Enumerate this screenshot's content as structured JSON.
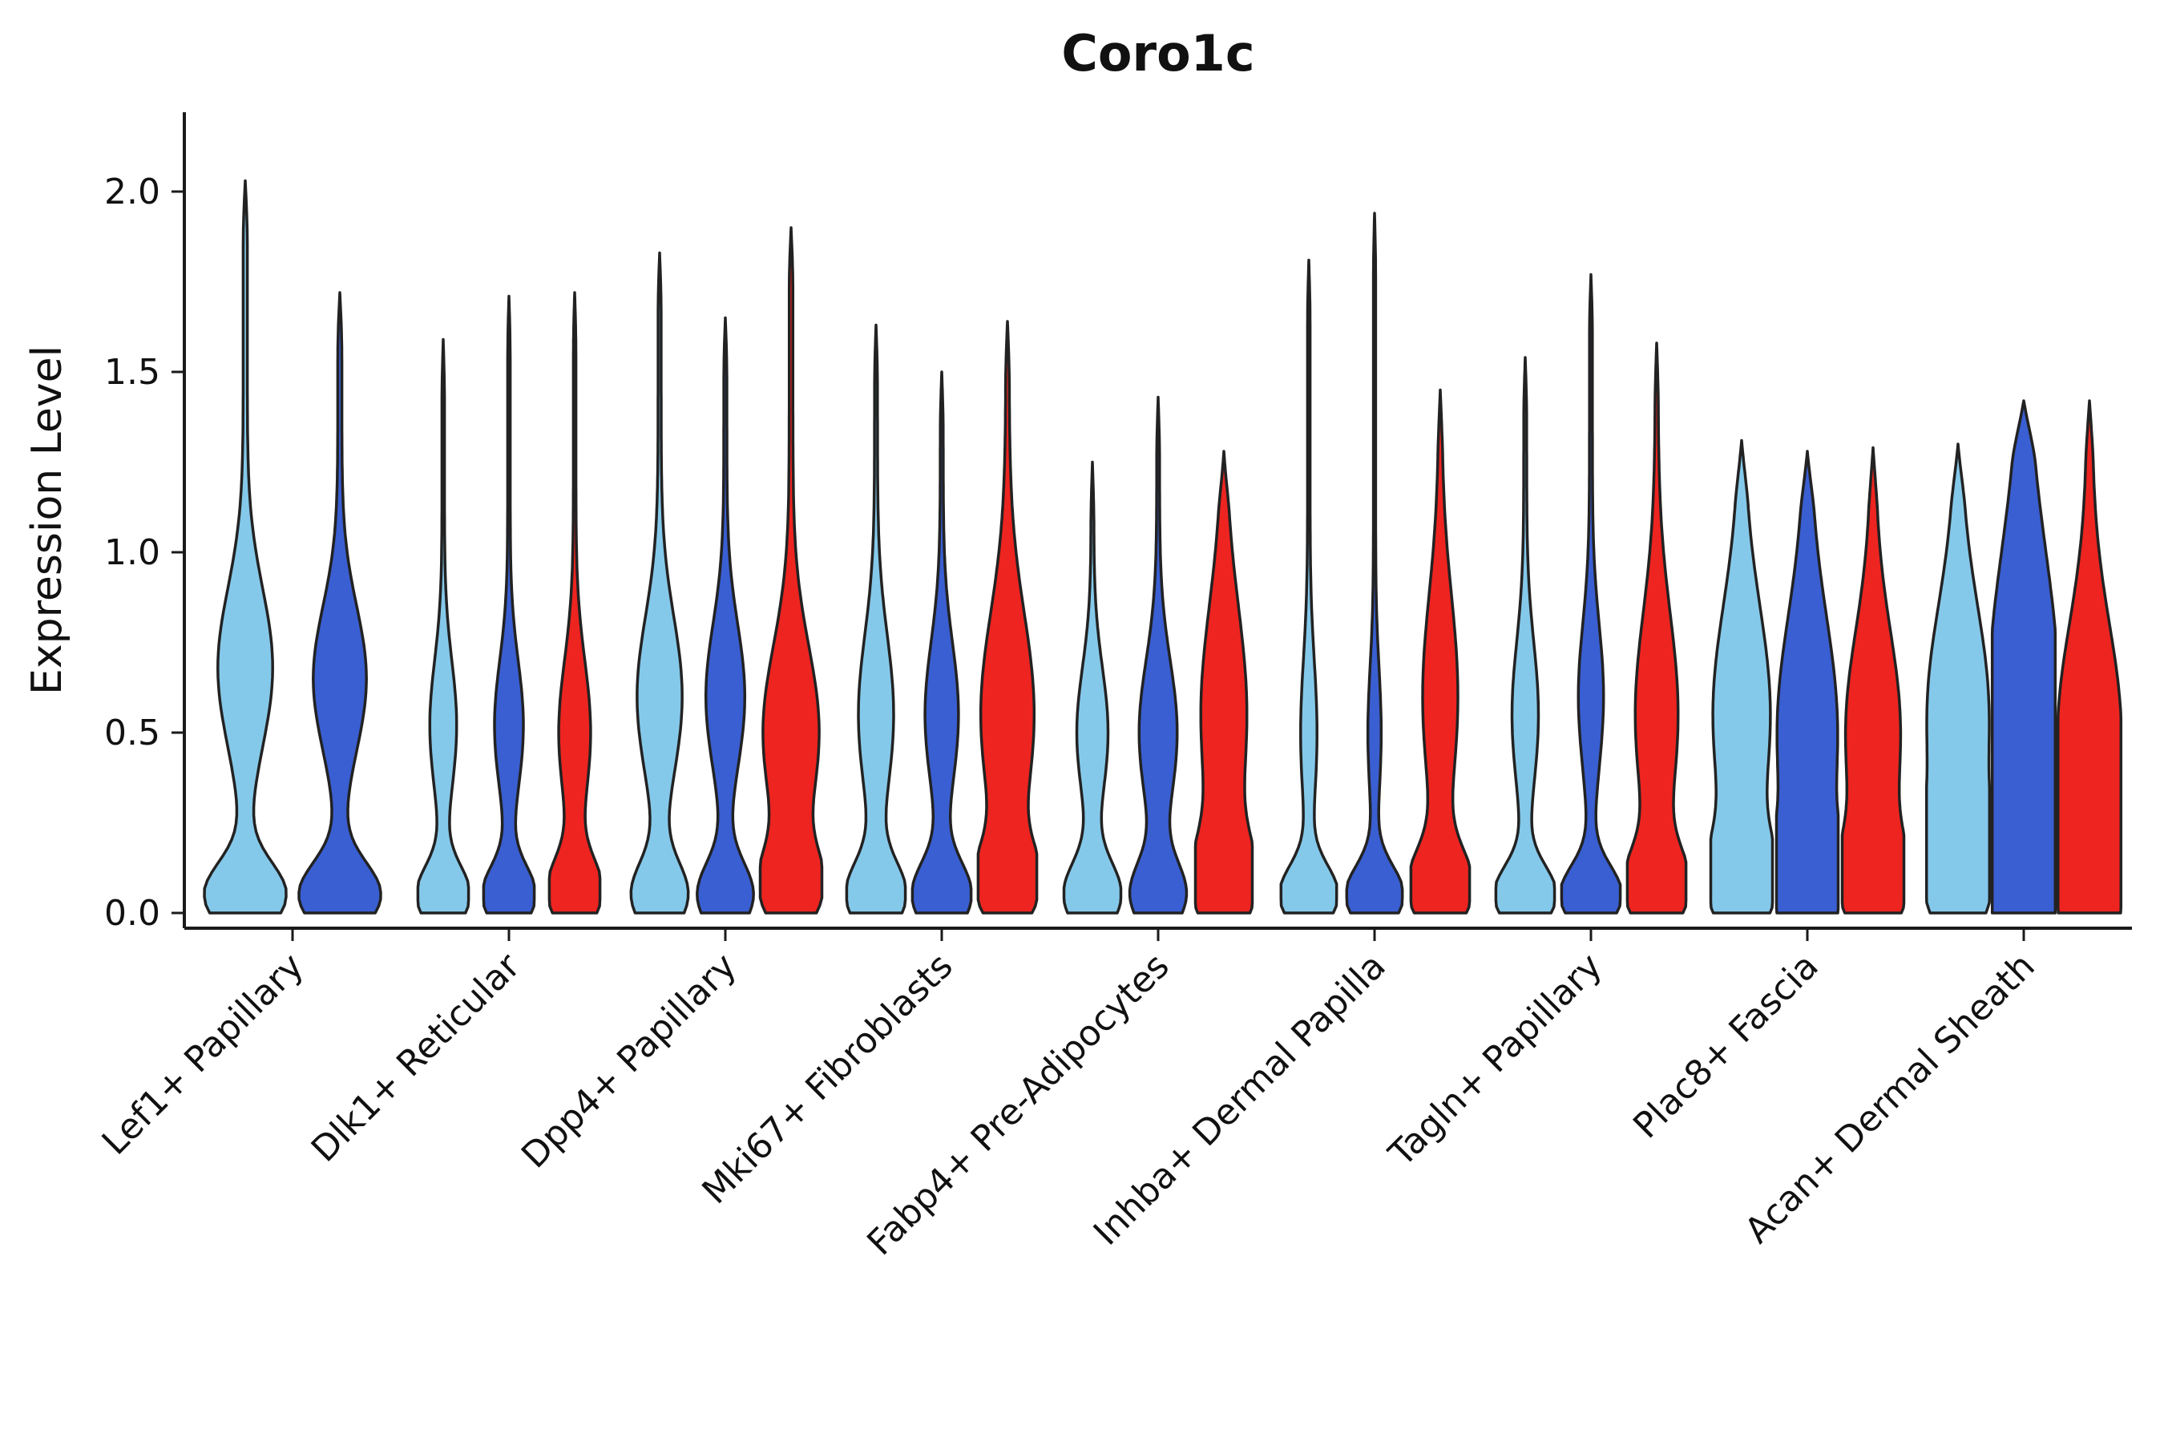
{
  "chart_data": {
    "type": "violin",
    "title": "Coro1c",
    "ylabel": "Expression Level",
    "ylim": [
      0,
      2.1
    ],
    "yticks": [
      0.0,
      0.5,
      1.0,
      1.5,
      2.0
    ],
    "grid": false,
    "legend_position": "none",
    "series_colors": [
      "#85C9EA",
      "#3A5FD2",
      "#EE2420"
    ],
    "stroke_color": "#222222",
    "categories": [
      {
        "label": "Lef1+ Papillary",
        "violins": [
          {
            "series": 0,
            "max": 2.03,
            "scale": 0.92,
            "tail": 0.05,
            "bumps": [
              [
                0.05,
                0.09,
                0.95
              ],
              [
                0.68,
                0.22,
                0.62
              ]
            ]
          },
          {
            "series": 1,
            "max": 1.72,
            "scale": 0.92,
            "tail": 0.05,
            "bumps": [
              [
                0.05,
                0.09,
                0.95
              ],
              [
                0.65,
                0.2,
                0.6
              ]
            ]
          }
        ]
      },
      {
        "label": "Dlk1+ Reticular",
        "violins": [
          {
            "series": 0,
            "max": 1.59,
            "scale": 0.82,
            "tail": 0.05,
            "bumps": [
              [
                0.05,
                0.08,
                1.0
              ],
              [
                0.52,
                0.18,
                0.48
              ]
            ]
          },
          {
            "series": 1,
            "max": 1.71,
            "scale": 0.82,
            "tail": 0.05,
            "bumps": [
              [
                0.05,
                0.08,
                1.0
              ],
              [
                0.52,
                0.18,
                0.52
              ]
            ]
          },
          {
            "series": 2,
            "max": 1.72,
            "scale": 0.82,
            "tail": 0.05,
            "bumps": [
              [
                0.06,
                0.09,
                1.0
              ],
              [
                0.5,
                0.2,
                0.58
              ]
            ]
          }
        ]
      },
      {
        "label": "Dpp4+ Papillary",
        "violins": [
          {
            "series": 0,
            "max": 1.83,
            "scale": 1.0,
            "tail": 0.05,
            "bumps": [
              [
                0.05,
                0.09,
                0.85
              ],
              [
                0.6,
                0.22,
                0.68
              ]
            ]
          },
          {
            "series": 1,
            "max": 1.65,
            "scale": 1.0,
            "tail": 0.05,
            "bumps": [
              [
                0.05,
                0.09,
                0.85
              ],
              [
                0.6,
                0.2,
                0.58
              ]
            ]
          },
          {
            "series": 2,
            "max": 1.9,
            "scale": 1.0,
            "tail": 0.06,
            "bumps": [
              [
                0.07,
                0.1,
                0.85
              ],
              [
                0.5,
                0.24,
                0.85
              ]
            ]
          }
        ]
      },
      {
        "label": "Mki67+ Fibroblasts",
        "violins": [
          {
            "series": 0,
            "max": 1.63,
            "scale": 0.95,
            "tail": 0.05,
            "bumps": [
              [
                0.05,
                0.09,
                0.95
              ],
              [
                0.55,
                0.22,
                0.55
              ]
            ]
          },
          {
            "series": 1,
            "max": 1.5,
            "scale": 0.95,
            "tail": 0.05,
            "bumps": [
              [
                0.05,
                0.09,
                0.95
              ],
              [
                0.55,
                0.2,
                0.52
              ]
            ]
          },
          {
            "series": 2,
            "max": 1.64,
            "scale": 0.95,
            "tail": 0.06,
            "bumps": [
              [
                0.08,
                0.1,
                0.9
              ],
              [
                0.55,
                0.28,
                0.85
              ]
            ]
          }
        ]
      },
      {
        "label": "Fabp4+ Pre-Adipocytes",
        "violins": [
          {
            "series": 0,
            "max": 1.25,
            "scale": 0.92,
            "tail": 0.05,
            "bumps": [
              [
                0.05,
                0.09,
                0.95
              ],
              [
                0.5,
                0.18,
                0.5
              ]
            ]
          },
          {
            "series": 1,
            "max": 1.43,
            "scale": 0.92,
            "tail": 0.05,
            "bumps": [
              [
                0.05,
                0.09,
                0.9
              ],
              [
                0.5,
                0.2,
                0.62
              ]
            ]
          },
          {
            "series": 2,
            "max": 1.28,
            "scale": 0.92,
            "tail": 0.06,
            "bumps": [
              [
                0.08,
                0.12,
                0.9
              ],
              [
                0.55,
                0.3,
                0.75
              ]
            ]
          }
        ]
      },
      {
        "label": "Inhba+ Dermal Papilla",
        "violins": [
          {
            "series": 0,
            "max": 1.81,
            "scale": 0.9,
            "tail": 0.045,
            "bumps": [
              [
                0.05,
                0.08,
                1.0
              ],
              [
                0.5,
                0.2,
                0.25
              ]
            ]
          },
          {
            "series": 1,
            "max": 1.94,
            "scale": 0.9,
            "tail": 0.04,
            "bumps": [
              [
                0.05,
                0.08,
                1.0
              ],
              [
                0.5,
                0.18,
                0.2
              ]
            ]
          },
          {
            "series": 2,
            "max": 1.45,
            "scale": 0.95,
            "tail": 0.05,
            "bumps": [
              [
                0.07,
                0.1,
                1.0
              ],
              [
                0.6,
                0.28,
                0.55
              ]
            ]
          }
        ]
      },
      {
        "label": "Tagln+ Papillary",
        "violins": [
          {
            "series": 0,
            "max": 1.54,
            "scale": 0.95,
            "tail": 0.05,
            "bumps": [
              [
                0.05,
                0.08,
                1.0
              ],
              [
                0.55,
                0.2,
                0.4
              ]
            ]
          },
          {
            "series": 1,
            "max": 1.77,
            "scale": 0.95,
            "tail": 0.05,
            "bumps": [
              [
                0.05,
                0.08,
                1.0
              ],
              [
                0.6,
                0.2,
                0.38
              ]
            ]
          },
          {
            "series": 2,
            "max": 1.58,
            "scale": 0.95,
            "tail": 0.05,
            "bumps": [
              [
                0.07,
                0.1,
                0.95
              ],
              [
                0.55,
                0.28,
                0.68
              ]
            ]
          }
        ]
      },
      {
        "label": "Plac8+ Fascia",
        "violins": [
          {
            "series": 0,
            "max": 1.31,
            "scale": 1.0,
            "tail": 0.08,
            "bumps": [
              [
                0.08,
                0.12,
                0.85
              ],
              [
                0.55,
                0.3,
                0.85
              ]
            ]
          },
          {
            "series": 1,
            "max": 1.28,
            "scale": 1.0,
            "tail": 0.08,
            "bumps": [
              [
                0.08,
                0.12,
                0.8
              ],
              [
                0.5,
                0.32,
                0.9
              ]
            ]
          },
          {
            "series": 2,
            "max": 1.29,
            "scale": 1.0,
            "tail": 0.07,
            "bumps": [
              [
                0.08,
                0.12,
                0.85
              ],
              [
                0.5,
                0.28,
                0.82
              ]
            ]
          }
        ]
      },
      {
        "label": "Acan+ Dermal Sheath",
        "violins": [
          {
            "series": 0,
            "max": 1.3,
            "scale": 1.02,
            "tail": 0.08,
            "bumps": [
              [
                0.1,
                0.15,
                0.8
              ],
              [
                0.55,
                0.3,
                0.9
              ]
            ]
          },
          {
            "series": 1,
            "max": 1.42,
            "scale": 1.02,
            "tail": 0.1,
            "bumps": [
              [
                0.1,
                0.18,
                0.85
              ],
              [
                0.6,
                0.4,
                1.0
              ]
            ]
          },
          {
            "series": 2,
            "max": 1.42,
            "scale": 1.02,
            "tail": 0.08,
            "bumps": [
              [
                0.1,
                0.15,
                0.85
              ],
              [
                0.5,
                0.3,
                0.92
              ]
            ]
          }
        ]
      }
    ]
  }
}
